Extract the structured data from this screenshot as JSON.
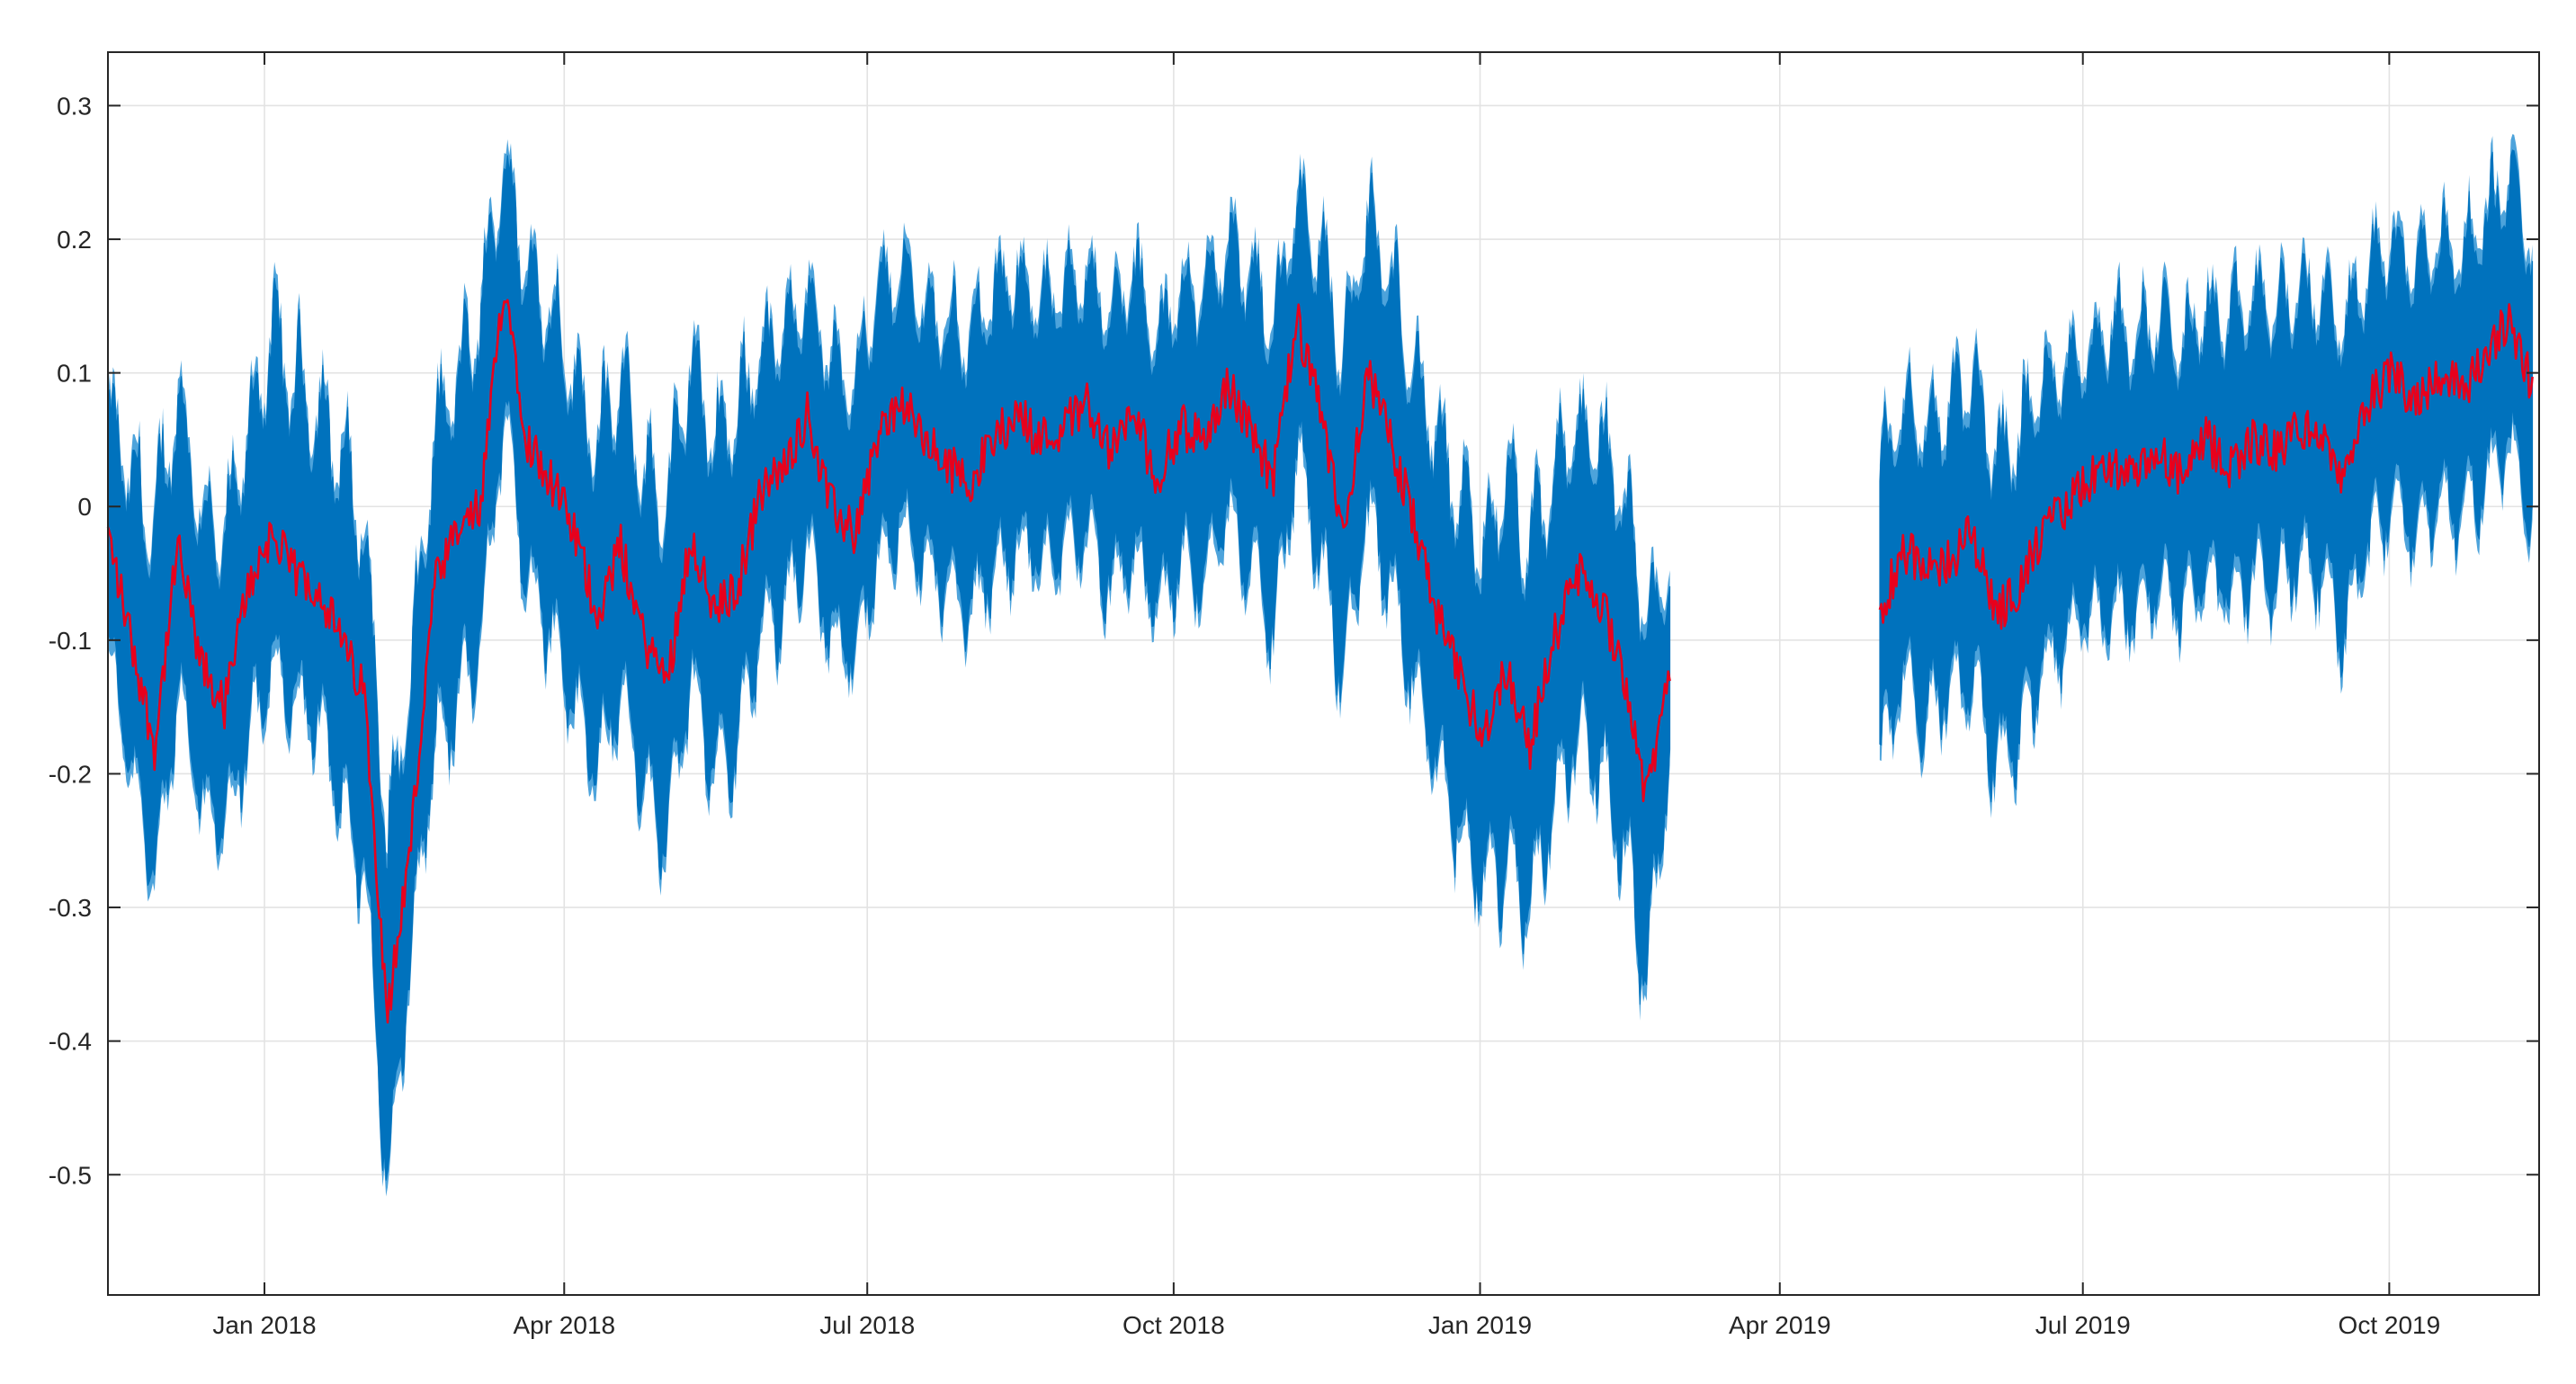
{
  "chart_data": {
    "type": "line",
    "title": "",
    "xlabel": "",
    "ylabel": "",
    "x_axis": {
      "kind": "date",
      "range": [
        "2017-11-15",
        "2019-11-15"
      ],
      "ticks": [
        {
          "date": "2018-01-01",
          "label": "Jan 2018"
        },
        {
          "date": "2018-04-01",
          "label": "Apr 2018"
        },
        {
          "date": "2018-07-01",
          "label": "Jul 2018"
        },
        {
          "date": "2018-10-01",
          "label": "Oct 2018"
        },
        {
          "date": "2019-01-01",
          "label": "Jan 2019"
        },
        {
          "date": "2019-04-01",
          "label": "Apr 2019"
        },
        {
          "date": "2019-07-01",
          "label": "Jul 2019"
        },
        {
          "date": "2019-10-01",
          "label": "Oct 2019"
        }
      ]
    },
    "y_axis": {
      "range": [
        -0.59,
        0.34
      ],
      "ticks": [
        {
          "value": 0.3,
          "label": "0.3"
        },
        {
          "value": 0.2,
          "label": "0.2"
        },
        {
          "value": 0.1,
          "label": "0.1"
        },
        {
          "value": 0,
          "label": "0"
        },
        {
          "value": -0.1,
          "label": "-0.1"
        },
        {
          "value": -0.2,
          "label": "-0.2"
        },
        {
          "value": -0.3,
          "label": "-0.3"
        },
        {
          "value": -0.4,
          "label": "-0.4"
        },
        {
          "value": -0.5,
          "label": "-0.5"
        }
      ]
    },
    "grid": true,
    "legend": "none",
    "colors": {
      "band": "#0072BD",
      "band_edge": "#4DA3DB",
      "line": "#E8001C",
      "grid": "#E3E3E3",
      "axis": "#262626"
    },
    "series": [
      {
        "role": "band",
        "segments": [
          [
            [
              "2017-11-15",
              -0.02,
              0.09,
              -0.12
            ],
            [
              "2017-11-22",
              -0.1,
              0.05,
              -0.22
            ],
            [
              "2017-11-29",
              -0.18,
              0.02,
              -0.3
            ],
            [
              "2017-12-06",
              -0.03,
              0.11,
              -0.16
            ],
            [
              "2017-12-13",
              -0.12,
              0.02,
              -0.25
            ],
            [
              "2017-12-20",
              -0.15,
              0,
              -0.26
            ],
            [
              "2017-12-27",
              -0.06,
              0.08,
              -0.2
            ],
            [
              "2018-01-03",
              -0.02,
              0.16,
              -0.14
            ],
            [
              "2018-01-10",
              -0.05,
              0.13,
              -0.17
            ],
            [
              "2018-01-17",
              -0.06,
              0.1,
              -0.18
            ],
            [
              "2018-01-24",
              -0.1,
              0.07,
              -0.25
            ],
            [
              "2018-01-31",
              -0.14,
              0.01,
              -0.3
            ],
            [
              "2018-02-07",
              -0.38,
              -0.22,
              -0.55
            ],
            [
              "2018-02-14",
              -0.25,
              -0.1,
              -0.35
            ],
            [
              "2018-02-21",
              -0.06,
              0.08,
              -0.2
            ],
            [
              "2018-02-28",
              -0.02,
              0.12,
              -0.18
            ],
            [
              "2018-03-07",
              0,
              0.18,
              -0.12
            ],
            [
              "2018-03-14",
              0.17,
              0.28,
              0.05
            ],
            [
              "2018-03-21",
              0.05,
              0.2,
              -0.08
            ],
            [
              "2018-03-28",
              0.02,
              0.18,
              -0.12
            ],
            [
              "2018-04-04",
              -0.02,
              0.12,
              -0.18
            ],
            [
              "2018-04-11",
              -0.08,
              0.08,
              -0.22
            ],
            [
              "2018-04-18",
              -0.03,
              0.12,
              -0.16
            ],
            [
              "2018-04-25",
              -0.1,
              0.05,
              -0.24
            ],
            [
              "2018-05-02",
              -0.13,
              0.03,
              -0.27
            ],
            [
              "2018-05-09",
              -0.02,
              0.14,
              -0.15
            ],
            [
              "2018-05-16",
              -0.08,
              0.08,
              -0.22
            ],
            [
              "2018-05-23",
              -0.06,
              0.1,
              -0.2
            ],
            [
              "2018-05-30",
              0.01,
              0.14,
              -0.12
            ],
            [
              "2018-06-06",
              0.03,
              0.15,
              -0.1
            ],
            [
              "2018-06-13",
              0.07,
              0.18,
              -0.05
            ],
            [
              "2018-06-20",
              0,
              0.13,
              -0.12
            ],
            [
              "2018-06-27",
              -0.02,
              0.12,
              -0.13
            ],
            [
              "2018-07-04",
              0.05,
              0.18,
              -0.06
            ],
            [
              "2018-07-11",
              0.08,
              0.2,
              -0.03
            ],
            [
              "2018-07-18",
              0.05,
              0.17,
              -0.06
            ],
            [
              "2018-07-25",
              0.03,
              0.16,
              -0.08
            ],
            [
              "2018-08-01",
              0.02,
              0.15,
              -0.1
            ],
            [
              "2018-08-08",
              0.05,
              0.18,
              -0.07
            ],
            [
              "2018-08-15",
              0.07,
              0.2,
              -0.05
            ],
            [
              "2018-08-22",
              0.05,
              0.17,
              -0.06
            ],
            [
              "2018-08-29",
              0.06,
              0.18,
              -0.05
            ],
            [
              "2018-09-05",
              0.08,
              0.2,
              -0.04
            ],
            [
              "2018-09-12",
              0.04,
              0.16,
              -0.08
            ],
            [
              "2018-09-19",
              0.07,
              0.2,
              -0.06
            ],
            [
              "2018-09-26",
              0.02,
              0.14,
              -0.1
            ],
            [
              "2018-10-03",
              0.06,
              0.19,
              -0.06
            ],
            [
              "2018-10-10",
              0.05,
              0.18,
              -0.08
            ],
            [
              "2018-10-17",
              0.09,
              0.22,
              -0.03
            ],
            [
              "2018-10-24",
              0.06,
              0.2,
              -0.06
            ],
            [
              "2018-10-31",
              0.02,
              0.16,
              -0.12
            ],
            [
              "2018-11-07",
              0.14,
              0.25,
              0.02
            ],
            [
              "2018-11-14",
              0.07,
              0.22,
              -0.06
            ],
            [
              "2018-11-21",
              -0.02,
              0.14,
              -0.15
            ],
            [
              "2018-11-28",
              0.1,
              0.24,
              -0.03
            ],
            [
              "2018-12-05",
              0.05,
              0.2,
              -0.08
            ],
            [
              "2018-12-12",
              -0.01,
              0.13,
              -0.15
            ],
            [
              "2018-12-19",
              -0.08,
              0.08,
              -0.22
            ],
            [
              "2018-12-26",
              -0.13,
              0.03,
              -0.27
            ],
            [
              "2019-01-02",
              -0.17,
              0,
              -0.3
            ],
            [
              "2019-01-09",
              -0.12,
              0.05,
              -0.3
            ],
            [
              "2019-01-16",
              -0.18,
              0,
              -0.32
            ],
            [
              "2019-01-23",
              -0.1,
              0.05,
              -0.25
            ],
            [
              "2019-01-30",
              -0.05,
              0.08,
              -0.2
            ],
            [
              "2019-02-06",
              -0.07,
              0.08,
              -0.22
            ],
            [
              "2019-02-13",
              -0.12,
              0.03,
              -0.28
            ],
            [
              "2019-02-20",
              -0.22,
              -0.05,
              -0.38
            ],
            [
              "2019-02-27",
              -0.12,
              -0.04,
              -0.2
            ]
          ],
          [
            [
              "2019-05-01",
              -0.08,
              0.05,
              -0.22
            ],
            [
              "2019-05-08",
              -0.03,
              0.1,
              -0.15
            ],
            [
              "2019-05-15",
              -0.05,
              0.08,
              -0.18
            ],
            [
              "2019-05-22",
              -0.04,
              0.1,
              -0.16
            ],
            [
              "2019-05-29",
              -0.02,
              0.12,
              -0.15
            ],
            [
              "2019-06-05",
              -0.08,
              0.06,
              -0.22
            ],
            [
              "2019-06-12",
              -0.06,
              0.08,
              -0.2
            ],
            [
              "2019-06-19",
              -0.02,
              0.12,
              -0.14
            ],
            [
              "2019-06-26",
              0,
              0.13,
              -0.12
            ],
            [
              "2019-07-03",
              0.02,
              0.14,
              -0.1
            ],
            [
              "2019-07-10",
              0.03,
              0.16,
              -0.1
            ],
            [
              "2019-07-17",
              0.02,
              0.15,
              -0.1
            ],
            [
              "2019-07-24",
              0.04,
              0.16,
              -0.08
            ],
            [
              "2019-07-31",
              0.02,
              0.14,
              -0.1
            ],
            [
              "2019-08-07",
              0.05,
              0.17,
              -0.07
            ],
            [
              "2019-08-14",
              0.03,
              0.16,
              -0.09
            ],
            [
              "2019-08-21",
              0.05,
              0.18,
              -0.07
            ],
            [
              "2019-08-28",
              0.04,
              0.17,
              -0.08
            ],
            [
              "2019-09-04",
              0.06,
              0.18,
              -0.06
            ],
            [
              "2019-09-11",
              0.05,
              0.18,
              -0.07
            ],
            [
              "2019-09-18",
              0.02,
              0.16,
              -0.12
            ],
            [
              "2019-09-25",
              0.08,
              0.2,
              -0.05
            ],
            [
              "2019-10-02",
              0.1,
              0.22,
              -0.02
            ],
            [
              "2019-10-09",
              0.08,
              0.2,
              -0.04
            ],
            [
              "2019-10-16",
              0.1,
              0.22,
              -0.02
            ],
            [
              "2019-10-23",
              0.09,
              0.21,
              -0.03
            ],
            [
              "2019-10-30",
              0.11,
              0.24,
              0
            ],
            [
              "2019-11-06",
              0.14,
              0.27,
              0.03
            ],
            [
              "2019-11-13",
              0.09,
              0.22,
              -0.03
            ]
          ]
        ]
      }
    ]
  }
}
